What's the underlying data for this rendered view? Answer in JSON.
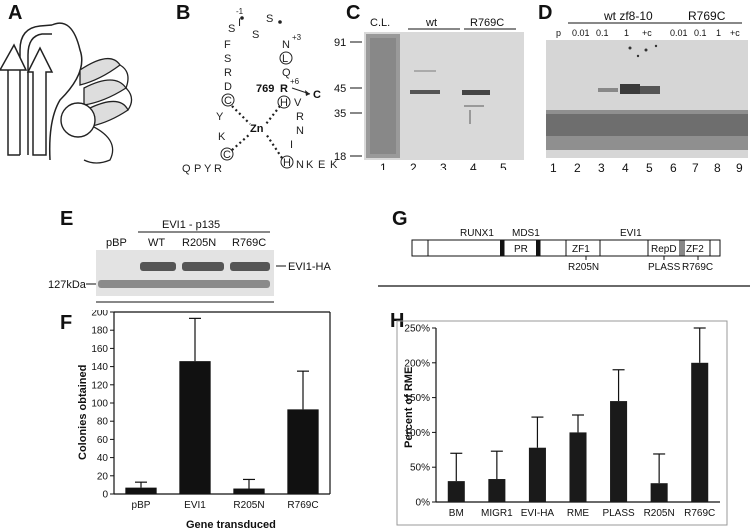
{
  "panels": {
    "A": {
      "label": "A"
    },
    "B": {
      "label": "B",
      "positions": {
        "m1": "-1",
        "p3": "+3",
        "p6": "+6",
        "num769": "769"
      },
      "terminus": "C",
      "metal": "Zn",
      "residues": {
        "top": [
          "S",
          "I",
          "S",
          "S",
          "N"
        ],
        "left": [
          "F",
          "S",
          "R",
          "D",
          "C",
          "Y",
          "K",
          "C",
          "R",
          "Y",
          "P",
          "Q"
        ],
        "right": [
          "L",
          "Q",
          "R",
          "H",
          "V",
          "R",
          "N",
          "I",
          "H",
          "N",
          "K",
          "E",
          "K"
        ]
      }
    },
    "C": {
      "label": "C",
      "lane_headers": [
        "C.L.",
        "wt",
        "R769C"
      ],
      "markers": [
        "91",
        "45",
        "35",
        "18"
      ],
      "lanes": [
        "1",
        "2",
        "3",
        "4",
        "5"
      ]
    },
    "D": {
      "label": "D",
      "groups": [
        "wt zf8-10",
        "R769C"
      ],
      "concentrations": [
        "p",
        "0.01",
        "0.1",
        "1",
        "+c",
        "0.01",
        "0.1",
        "1",
        "+c"
      ],
      "lanes": [
        "1",
        "2",
        "3",
        "4",
        "5",
        "6",
        "7",
        "8",
        "9"
      ]
    },
    "E": {
      "label": "E",
      "group": "EVI1 - p135",
      "lanes": [
        "pBP",
        "WT",
        "R205N",
        "R769C"
      ],
      "band_label": "EVI1-HA",
      "marker": "127kDa"
    },
    "F": {
      "label": "F",
      "ylabel": "Colonies obtained",
      "xlabel": "Gene transduced",
      "yticks": [
        "0",
        "20",
        "40",
        "60",
        "80",
        "100",
        "120",
        "140",
        "160",
        "180",
        "200"
      ]
    },
    "G": {
      "label": "G",
      "domains": [
        "RUNX1",
        "MDS1",
        "PR",
        "ZF1",
        "EVI1",
        "RepD",
        "ZF2"
      ],
      "mutations": [
        "R205N",
        "PLASS",
        "R769C"
      ]
    },
    "H": {
      "label": "H",
      "ylabel": "Percent of RME",
      "yticks": [
        "0%",
        "50%",
        "100%",
        "150%",
        "200%",
        "250%"
      ]
    }
  },
  "chart_data": [
    {
      "type": "bar",
      "panel": "F",
      "categories": [
        "pBP",
        "EVI1",
        "R205N",
        "R769C"
      ],
      "values": [
        7,
        146,
        6,
        93
      ],
      "errors": [
        6,
        47,
        10,
        42
      ],
      "ylim": [
        0,
        200
      ],
      "xlabel": "Gene transduced",
      "ylabel": "Colonies obtained",
      "color": "#111111"
    },
    {
      "type": "bar",
      "panel": "H",
      "categories": [
        "BM",
        "MIGR1",
        "EVI-HA",
        "RME",
        "PLASS",
        "R205N",
        "R769C"
      ],
      "values": [
        30,
        33,
        78,
        100,
        145,
        27,
        200
      ],
      "errors": [
        40,
        40,
        44,
        25,
        45,
        42,
        50
      ],
      "ylim": [
        0,
        250
      ],
      "ylabel": "Percent of RME",
      "color": "#1a1a1a"
    }
  ]
}
